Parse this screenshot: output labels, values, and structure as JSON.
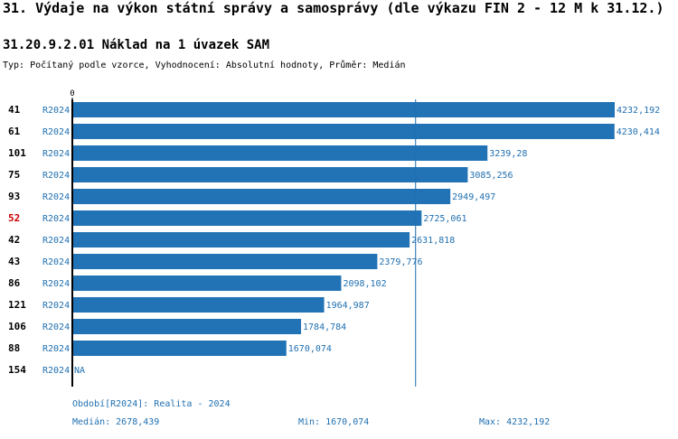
{
  "header": {
    "title": "31. Výdaje na výkon státní správy a samosprávy (dle výkazu FIN 2 - 12 M k 31.12.)",
    "subtitle": "31.20.9.2.01 Náklad na 1 úvazek SAM",
    "typ": "Typ: Počítaný podle vzorce, Vyhodnocení: Absolutní hodnoty, Průměr: Medián"
  },
  "colors": {
    "bar": "#2273b5",
    "label": "#1f6fb0",
    "highlight": "#cc0000",
    "median_line": "#1f6fb0"
  },
  "chart_data": {
    "type": "bar",
    "orientation": "horizontal",
    "axis_zero_label": "0",
    "xlim": [
      0,
      4232.192
    ],
    "rows": [
      {
        "id": "41",
        "period": "R2024",
        "value": 4232.192,
        "label": "4232,192",
        "highlight": false
      },
      {
        "id": "61",
        "period": "R2024",
        "value": 4230.414,
        "label": "4230,414",
        "highlight": false
      },
      {
        "id": "101",
        "period": "R2024",
        "value": 3239.28,
        "label": "3239,28",
        "highlight": false
      },
      {
        "id": "75",
        "period": "R2024",
        "value": 3085.256,
        "label": "3085,256",
        "highlight": false
      },
      {
        "id": "93",
        "period": "R2024",
        "value": 2949.497,
        "label": "2949,497",
        "highlight": false
      },
      {
        "id": "52",
        "period": "R2024",
        "value": 2725.061,
        "label": "2725,061",
        "highlight": true
      },
      {
        "id": "42",
        "period": "R2024",
        "value": 2631.818,
        "label": "2631,818",
        "highlight": false
      },
      {
        "id": "43",
        "period": "R2024",
        "value": 2379.776,
        "label": "2379,776",
        "highlight": false
      },
      {
        "id": "86",
        "period": "R2024",
        "value": 2098.102,
        "label": "2098,102",
        "highlight": false
      },
      {
        "id": "121",
        "period": "R2024",
        "value": 1964.987,
        "label": "1964,987",
        "highlight": false
      },
      {
        "id": "106",
        "period": "R2024",
        "value": 1784.784,
        "label": "1784,784",
        "highlight": false
      },
      {
        "id": "88",
        "period": "R2024",
        "value": 1670.074,
        "label": "1670,074",
        "highlight": false
      },
      {
        "id": "154",
        "period": "R2024",
        "value": null,
        "label": "NA",
        "highlight": false
      }
    ],
    "median": 2678.439
  },
  "footer": {
    "period": "Období[R2024]: Realita - 2024",
    "median": "Medián: 2678,439",
    "min": "Min: 1670,074",
    "max": "Max: 4232,192"
  }
}
